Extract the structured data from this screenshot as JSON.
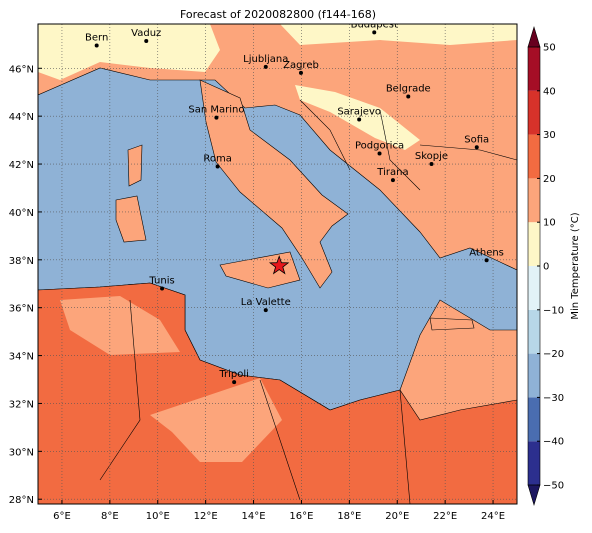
{
  "chart_data": {
    "type": "map",
    "title": "Forecast of 2020082800 (f144-168)",
    "xlim": [
      5,
      25
    ],
    "ylim": [
      27.8,
      47.85
    ],
    "grid": true,
    "xticks": [
      {
        "value": 6,
        "label": "6°E"
      },
      {
        "value": 8,
        "label": "8°E"
      },
      {
        "value": 10,
        "label": "10°E"
      },
      {
        "value": 12,
        "label": "12°E"
      },
      {
        "value": 14,
        "label": "14°E"
      },
      {
        "value": 16,
        "label": "16°E"
      },
      {
        "value": 18,
        "label": "18°E"
      },
      {
        "value": 20,
        "label": "20°E"
      },
      {
        "value": 22,
        "label": "22°E"
      },
      {
        "value": 24,
        "label": "24°E"
      }
    ],
    "yticks": [
      {
        "value": 28,
        "label": "28°N"
      },
      {
        "value": 30,
        "label": "30°N"
      },
      {
        "value": 32,
        "label": "32°N"
      },
      {
        "value": 34,
        "label": "34°N"
      },
      {
        "value": 36,
        "label": "36°N"
      },
      {
        "value": 38,
        "label": "38°N"
      },
      {
        "value": 40,
        "label": "40°N"
      },
      {
        "value": 42,
        "label": "42°N"
      },
      {
        "value": 44,
        "label": "44°N"
      },
      {
        "value": 46,
        "label": "46°N"
      }
    ],
    "cities": [
      {
        "name": "Bern",
        "lon": 7.45,
        "lat": 46.95
      },
      {
        "name": "Vaduz",
        "lon": 9.52,
        "lat": 47.14
      },
      {
        "name": "Budapest",
        "lon": 19.04,
        "lat": 47.5
      },
      {
        "name": "Ljubljana",
        "lon": 14.51,
        "lat": 46.06
      },
      {
        "name": "Zagreb",
        "lon": 15.98,
        "lat": 45.81
      },
      {
        "name": "Belgrade",
        "lon": 20.46,
        "lat": 44.82
      },
      {
        "name": "San Marino",
        "lon": 12.45,
        "lat": 43.94
      },
      {
        "name": "Sarajevo",
        "lon": 18.41,
        "lat": 43.86
      },
      {
        "name": "Sofia",
        "lon": 23.32,
        "lat": 42.7
      },
      {
        "name": "Podgorica",
        "lon": 19.26,
        "lat": 42.44
      },
      {
        "name": "Skopje",
        "lon": 21.43,
        "lat": 42.0
      },
      {
        "name": "Roma",
        "lon": 12.5,
        "lat": 41.9
      },
      {
        "name": "Tirana",
        "lon": 19.82,
        "lat": 41.33
      },
      {
        "name": "Athens",
        "lon": 23.73,
        "lat": 37.98
      },
      {
        "name": "Tunis",
        "lon": 10.18,
        "lat": 36.8
      },
      {
        "name": "La Valette",
        "lon": 14.51,
        "lat": 35.9
      },
      {
        "name": "Tripoli",
        "lon": 13.19,
        "lat": 32.89
      }
    ],
    "marker": {
      "lon": 15.07,
      "lat": 37.75,
      "color": "#e8161b"
    },
    "colorbar": {
      "label": "Min Temperature (°C)",
      "lim": [
        -50,
        50
      ],
      "ticks": [
        {
          "value": -50,
          "label": "−50"
        },
        {
          "value": -40,
          "label": "−40"
        },
        {
          "value": -30,
          "label": "−30"
        },
        {
          "value": -20,
          "label": "−20"
        },
        {
          "value": -10,
          "label": "−10"
        },
        0,
        10,
        20,
        30,
        40,
        50
      ],
      "colors": [
        "#2c2f8e",
        "#4a6db0",
        "#8fb2d6",
        "#b7d7e8",
        "#e2f2f7",
        "#fef7c7",
        "#fca57b",
        "#f26b41",
        "#d7322a",
        "#a50e26"
      ],
      "under": "#1c1760",
      "over": "#67001f"
    }
  }
}
